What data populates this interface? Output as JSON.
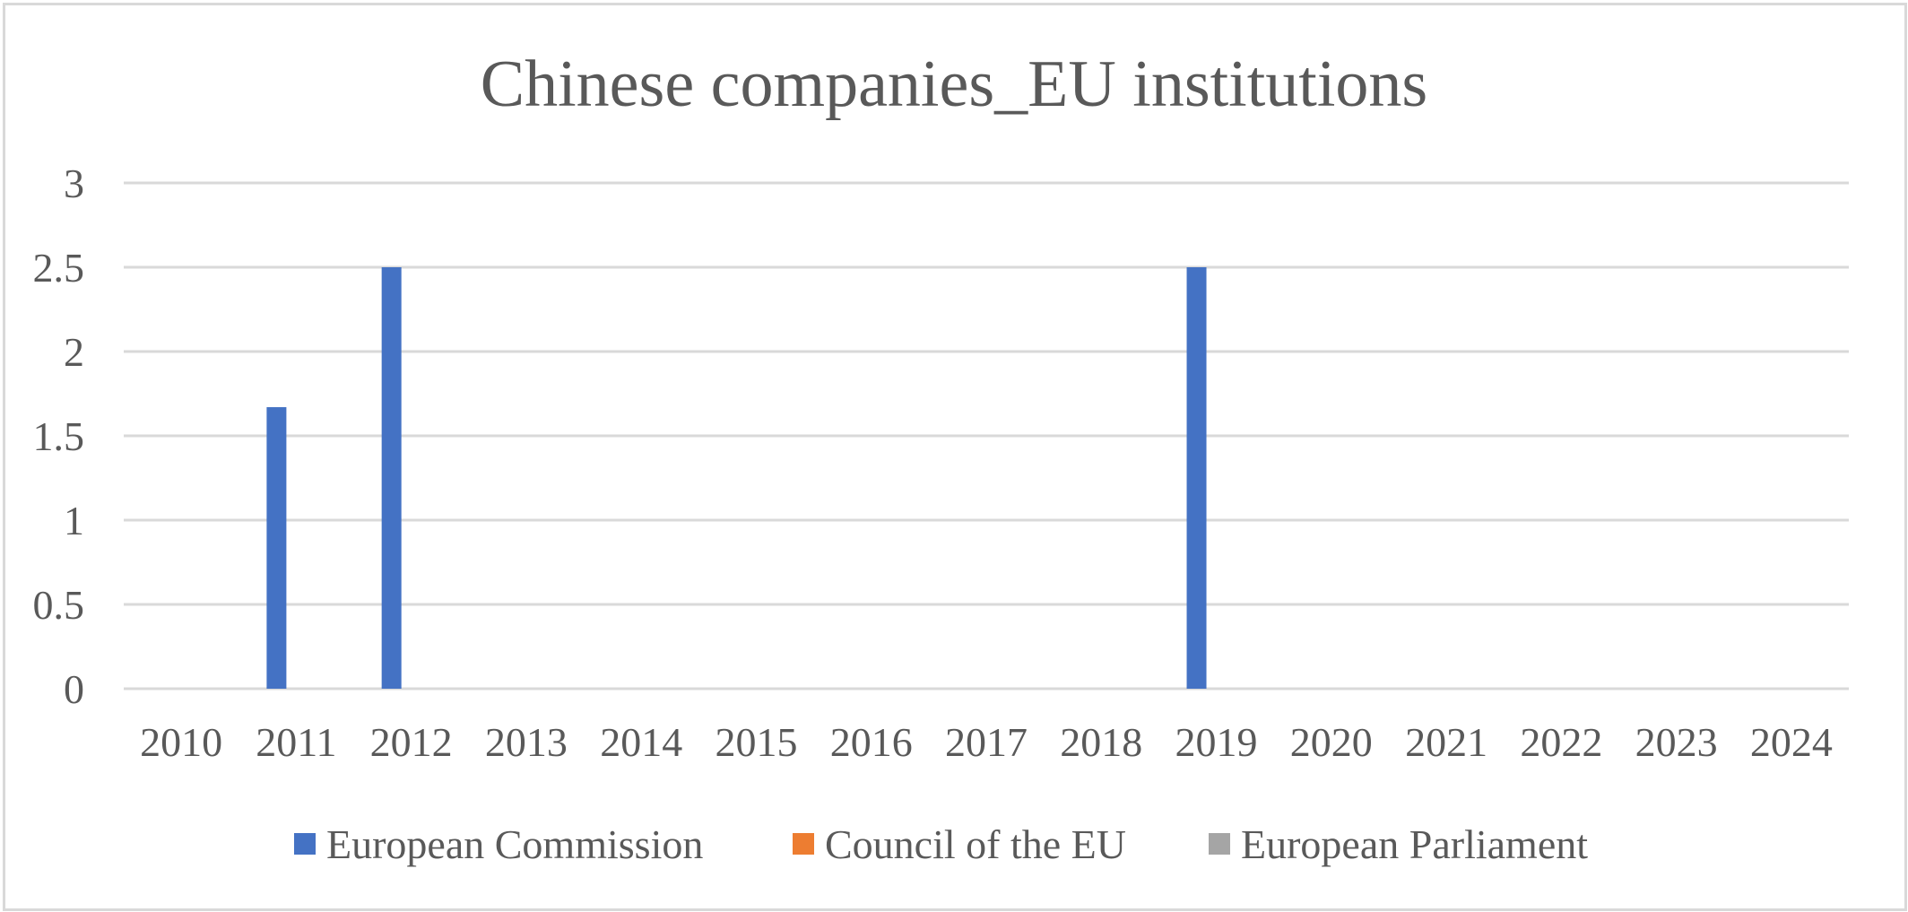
{
  "chart_data": {
    "type": "bar",
    "title": "Chinese companies_EU institutions",
    "xlabel": "",
    "ylabel": "",
    "categories": [
      "2010",
      "2011",
      "2012",
      "2013",
      "2014",
      "2015",
      "2016",
      "2017",
      "2018",
      "2019",
      "2020",
      "2021",
      "2022",
      "2023",
      "2024"
    ],
    "series": [
      {
        "name": "European Commission",
        "color": "#4472c4",
        "values": [
          0,
          1.67,
          2.5,
          0,
          0,
          0,
          0,
          0,
          0,
          2.5,
          0,
          0,
          0,
          0,
          0
        ]
      },
      {
        "name": "Council of the EU",
        "color": "#ed7d31",
        "values": [
          0,
          0,
          0,
          0,
          0,
          0,
          0,
          0,
          0,
          0,
          0,
          0,
          0,
          0,
          0
        ]
      },
      {
        "name": "European Parliament",
        "color": "#a5a5a5",
        "values": [
          0,
          0,
          0,
          0,
          0,
          0,
          0,
          0,
          0,
          0,
          0,
          0,
          0,
          0,
          0
        ]
      }
    ],
    "ylim": [
      0,
      3
    ],
    "yticks": [
      "0",
      "0.5",
      "1",
      "1.5",
      "2",
      "2.5",
      "3"
    ],
    "grid": true,
    "legend_position": "bottom",
    "colors": {
      "grid": "#d9d9d9",
      "text": "#595959",
      "border": "#d9d9d9"
    }
  }
}
